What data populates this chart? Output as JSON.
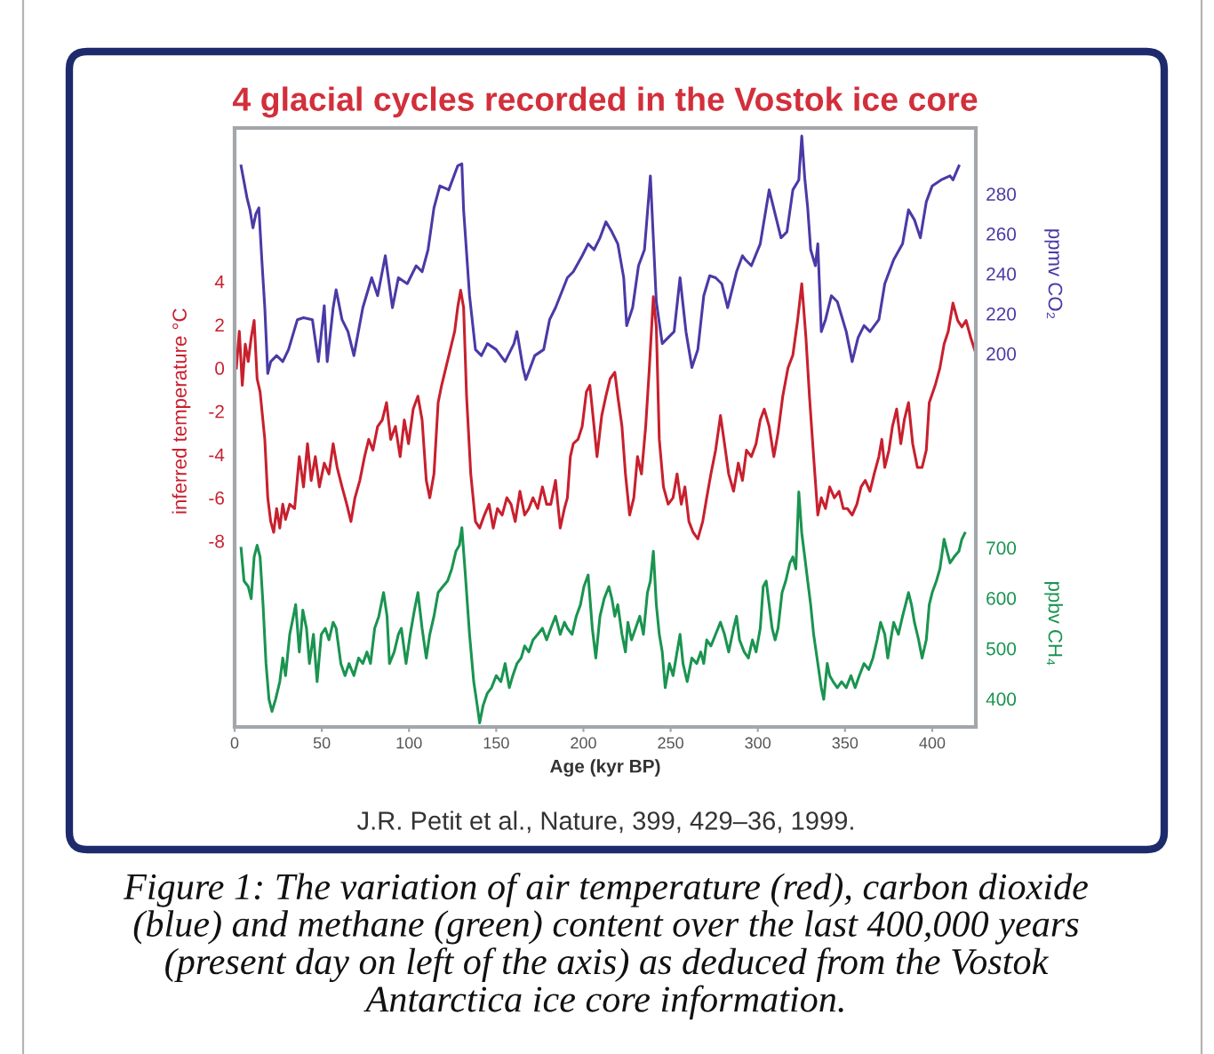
{
  "chart_data": {
    "type": "line",
    "title": "4 glacial cycles recorded in the Vostok ice core",
    "xlabel": "Age (kyr BP)",
    "ylabel": "inferred temperature °C",
    "y2label": "ppmv CO₂",
    "y3label": "ppbv CH₄",
    "xlim": [
      0,
      425
    ],
    "xticks": [
      0,
      50,
      100,
      150,
      200,
      250,
      300,
      350,
      400
    ],
    "ylim": [
      -16.6,
      11.1
    ],
    "yticks": [
      -8,
      -6,
      -4,
      -2,
      0,
      2,
      4
    ],
    "y2lim": [
      13,
      313
    ],
    "y2ticks": [
      200,
      220,
      240,
      260,
      280
    ],
    "y3lim": [
      344,
      1534
    ],
    "y3ticks": [
      400,
      500,
      600,
      700
    ],
    "series": [
      {
        "color": "#c8202e",
        "x": [
          1.0,
          2.7,
          4.4,
          6.1,
          7.8,
          9.5,
          11.2,
          12.9,
          14.6,
          17.3,
          19.0,
          20.7,
          22.4,
          24.1,
          25.9,
          27.6,
          29.2,
          31.6,
          34.4,
          37.1,
          39.5,
          41.8,
          43.9,
          46.3,
          48.6,
          51.4,
          54.1,
          56.5,
          58.8,
          61.6,
          64.3,
          66.7,
          69.0,
          71.8,
          74.5,
          76.9,
          79.3,
          82.0,
          84.7,
          87.1,
          89.5,
          92.2,
          94.9,
          97.3,
          99.7,
          102.4,
          105.1,
          107.5,
          109.9,
          111.9,
          114.3,
          116.7,
          118.7,
          121.1,
          123.5,
          126.2,
          127.9,
          129.6,
          131.3,
          133.0,
          135.4,
          138.1,
          140.5,
          143.2,
          145.9,
          148.3,
          150.7,
          153.4,
          156.1,
          158.5,
          160.9,
          163.6,
          166.3,
          168.7,
          171.1,
          173.8,
          176.5,
          178.9,
          181.3,
          184.0,
          186.7,
          189.1,
          190.8,
          192.5,
          194.2,
          196.9,
          199.3,
          201.7,
          203.7,
          206.1,
          207.8,
          210.5,
          212.9,
          215.3,
          218.0,
          219.7,
          222.1,
          224.1,
          226.5,
          228.9,
          231.0,
          233.3,
          235.7,
          237.8,
          240.1,
          241.8,
          243.5,
          245.9,
          248.6,
          251.4,
          253.7,
          256.1,
          258.2,
          260.5,
          262.9,
          265.6,
          268.4,
          270.7,
          273.1,
          275.8,
          278.6,
          280.9,
          283.3,
          286.1,
          288.8,
          291.2,
          293.5,
          296.3,
          299.0,
          301.4,
          303.7,
          306.5,
          309.2,
          311.6,
          314.3,
          317.3,
          320.1,
          322.8,
          325.2,
          327.6,
          329.6,
          332.0,
          334.4,
          336.4,
          338.8,
          341.2,
          343.9,
          346.6,
          349.0,
          351.4,
          354.1,
          356.8,
          359.2,
          361.6,
          364.3,
          366.7,
          369.4,
          371.1,
          372.8,
          375.2,
          377.2,
          379.6,
          382.0,
          384.0,
          386.4,
          388.8,
          391.5,
          394.2,
          396.6,
          398.3,
          401.7,
          404.4,
          406.8,
          409.2,
          411.9,
          414.6,
          417.0,
          419.4,
          422.1,
          424.5
        ],
        "values": [
          0.0,
          1.7,
          -0.8,
          1.1,
          0.3,
          1.4,
          2.2,
          -0.5,
          -1.1,
          -3.3,
          -6.0,
          -7.1,
          -7.6,
          -6.5,
          -7.4,
          -6.3,
          -7.0,
          -6.3,
          -6.5,
          -4.1,
          -5.5,
          -3.5,
          -5.2,
          -4.1,
          -5.5,
          -4.4,
          -4.9,
          -3.5,
          -4.6,
          -5.5,
          -6.3,
          -7.1,
          -6.0,
          -5.2,
          -4.1,
          -3.3,
          -3.8,
          -2.7,
          -2.4,
          -1.6,
          -3.3,
          -2.7,
          -4.1,
          -2.4,
          -3.5,
          -1.9,
          -1.3,
          -2.4,
          -5.2,
          -6.0,
          -4.9,
          -1.6,
          -0.8,
          0.0,
          0.8,
          1.7,
          2.8,
          3.6,
          2.8,
          -1.3,
          -4.9,
          -7.1,
          -7.4,
          -6.8,
          -6.3,
          -7.4,
          -6.5,
          -6.8,
          -6.0,
          -6.3,
          -7.1,
          -5.7,
          -6.8,
          -6.5,
          -6.0,
          -6.5,
          -5.5,
          -6.3,
          -6.3,
          -5.2,
          -7.4,
          -6.5,
          -6.0,
          -4.1,
          -3.5,
          -3.3,
          -2.7,
          -1.1,
          -0.8,
          -2.7,
          -4.1,
          -2.2,
          -1.3,
          -0.5,
          -0.2,
          -1.3,
          -2.7,
          -4.9,
          -6.8,
          -6.0,
          -4.1,
          -4.9,
          -2.7,
          0.0,
          3.3,
          1.9,
          -3.3,
          -5.5,
          -6.3,
          -6.0,
          -4.9,
          -6.3,
          -5.5,
          -7.1,
          -7.6,
          -7.9,
          -7.1,
          -6.0,
          -4.9,
          -3.8,
          -2.2,
          -3.5,
          -4.9,
          -5.7,
          -4.4,
          -5.2,
          -3.8,
          -4.1,
          -3.5,
          -2.4,
          -1.9,
          -2.7,
          -4.1,
          -3.0,
          -1.3,
          0.0,
          0.6,
          2.2,
          3.9,
          1.4,
          -1.3,
          -4.1,
          -6.8,
          -6.0,
          -6.5,
          -5.5,
          -6.0,
          -5.7,
          -6.5,
          -6.5,
          -6.8,
          -6.3,
          -5.5,
          -5.2,
          -5.7,
          -4.9,
          -4.1,
          -3.3,
          -4.6,
          -3.8,
          -2.7,
          -1.9,
          -3.5,
          -2.4,
          -1.6,
          -3.5,
          -4.6,
          -4.6,
          -3.8,
          -1.6,
          -0.8,
          0.0,
          1.1,
          1.7,
          3.0,
          2.2,
          1.9,
          2.2,
          1.4,
          0.8
        ]
      },
      {
        "color": "#4a3aa6",
        "axis": "y2",
        "x": [
          3.7,
          7.1,
          8.8,
          10.5,
          12.2,
          13.9,
          15.6,
          17.3,
          19.0,
          20.7,
          24.1,
          27.6,
          30.9,
          36.0,
          39.5,
          44.6,
          48.0,
          51.4,
          53.1,
          56.5,
          58.2,
          61.6,
          65.0,
          68.4,
          73.5,
          78.6,
          82.0,
          86.4,
          90.5,
          93.9,
          99.0,
          104.1,
          107.5,
          110.9,
          114.3,
          117.7,
          122.8,
          127.9,
          130.3,
          131.3,
          134.7,
          138.1,
          141.5,
          144.9,
          150.0,
          155.1,
          160.2,
          161.9,
          165.3,
          167.0,
          172.1,
          177.2,
          180.6,
          184.0,
          190.8,
          194.2,
          199.3,
          202.7,
          206.1,
          209.5,
          212.9,
          216.3,
          219.7,
          223.1,
          224.8,
          228.2,
          231.6,
          235.0,
          238.4,
          241.8,
          245.2,
          252.0,
          255.4,
          258.8,
          262.2,
          265.6,
          269.0,
          272.4,
          275.8,
          279.3,
          282.7,
          287.8,
          291.2,
          292.9,
          296.3,
          301.4,
          303.1,
          306.5,
          309.9,
          313.3,
          316.7,
          320.1,
          323.5,
          325.2,
          326.9,
          328.6,
          330.3,
          333.0,
          334.4,
          336.4,
          338.8,
          342.2,
          345.6,
          350.7,
          354.1,
          357.5,
          360.9,
          364.3,
          369.4,
          372.8,
          377.9,
          383.0,
          386.4,
          389.8,
          393.2,
          396.6,
          400.0,
          405.1,
          410.2,
          411.9,
          415.3
        ],
        "values": [
          294,
          278,
          272,
          263,
          270,
          273,
          247,
          223,
          190,
          196,
          199,
          196,
          202,
          217,
          218,
          217,
          196,
          224,
          196,
          223,
          232,
          217,
          211,
          199,
          223,
          238,
          229,
          249,
          223,
          238,
          235,
          244,
          241,
          252,
          273,
          284,
          282,
          294,
          295,
          272,
          229,
          202,
          199,
          205,
          202,
          196,
          205,
          211,
          193,
          187,
          199,
          202,
          217,
          223,
          238,
          241,
          249,
          255,
          252,
          258,
          266,
          261,
          255,
          238,
          214,
          223,
          244,
          252,
          289,
          226,
          205,
          211,
          238,
          211,
          193,
          202,
          229,
          239,
          238,
          235,
          223,
          241,
          249,
          247,
          244,
          255,
          264,
          282,
          270,
          258,
          261,
          282,
          287,
          309,
          288,
          273,
          252,
          244,
          255,
          211,
          217,
          229,
          226,
          211,
          196,
          208,
          214,
          211,
          217,
          235,
          247,
          255,
          272,
          267,
          258,
          276,
          284,
          287,
          289,
          287,
          294
        ]
      },
      {
        "color": "#1a9450",
        "axis": "y3",
        "x": [
          3.7,
          5.4,
          7.8,
          9.5,
          11.2,
          12.9,
          14.6,
          16.3,
          18.0,
          19.7,
          21.4,
          23.5,
          25.9,
          27.6,
          29.2,
          31.6,
          33.7,
          35.0,
          37.1,
          39.1,
          41.2,
          42.9,
          45.2,
          47.3,
          49.7,
          52.0,
          54.1,
          56.5,
          58.2,
          60.9,
          63.3,
          65.6,
          68.4,
          71.1,
          73.5,
          75.9,
          77.9,
          80.3,
          82.7,
          85.4,
          87.4,
          88.8,
          91.5,
          93.9,
          95.6,
          98.3,
          100.7,
          103.1,
          105.1,
          107.5,
          109.9,
          111.9,
          114.3,
          116.7,
          119.4,
          122.1,
          124.5,
          126.9,
          128.9,
          130.3,
          132.3,
          134.7,
          137.1,
          139.1,
          140.5,
          142.5,
          144.9,
          147.3,
          150.0,
          152.7,
          155.1,
          157.5,
          159.5,
          161.9,
          164.3,
          166.3,
          168.7,
          171.1,
          173.8,
          176.5,
          178.9,
          181.3,
          184.0,
          186.7,
          189.1,
          190.8,
          193.5,
          195.9,
          198.3,
          200.3,
          202.7,
          205.1,
          207.1,
          209.5,
          211.9,
          214.6,
          216.3,
          218.0,
          219.7,
          222.1,
          224.1,
          225.5,
          227.6,
          229.9,
          232.3,
          234.4,
          236.7,
          238.4,
          240.1,
          241.8,
          243.5,
          245.2,
          246.9,
          249.3,
          251.4,
          253.7,
          255.4,
          257.1,
          259.5,
          262.2,
          265.0,
          267.3,
          269.0,
          270.7,
          273.1,
          275.8,
          278.6,
          280.9,
          283.3,
          286.1,
          287.8,
          289.5,
          292.2,
          294.6,
          296.9,
          299.0,
          301.4,
          303.1,
          304.8,
          306.5,
          308.2,
          309.9,
          311.6,
          313.9,
          316.0,
          318.4,
          320.1,
          321.8,
          323.5,
          325.2,
          326.9,
          328.6,
          330.3,
          332.0,
          334.4,
          336.4,
          337.8,
          339.8,
          341.2,
          343.2,
          345.6,
          348.0,
          350.7,
          353.4,
          355.8,
          358.2,
          360.9,
          363.6,
          366.0,
          368.4,
          370.4,
          372.8,
          374.5,
          376.2,
          377.9,
          380.6,
          383.0,
          384.7,
          386.4,
          388.1,
          389.8,
          392.2,
          394.2,
          396.6,
          398.3,
          400.0,
          402.4,
          404.4,
          406.8,
          408.5,
          410.2,
          412.6,
          415.3,
          417.0,
          418.7
        ],
        "values": [
          699,
          634,
          623,
          599,
          682,
          705,
          682,
          587,
          470,
          399,
          375,
          399,
          434,
          481,
          446,
          528,
          564,
          587,
          493,
          576,
          540,
          470,
          528,
          434,
          528,
          540,
          517,
          552,
          540,
          470,
          446,
          470,
          446,
          481,
          470,
          493,
          470,
          540,
          564,
          611,
          564,
          470,
          493,
          528,
          540,
          470,
          528,
          576,
          611,
          540,
          481,
          528,
          564,
          611,
          623,
          634,
          658,
          693,
          705,
          740,
          646,
          528,
          434,
          387,
          352,
          387,
          411,
          422,
          446,
          434,
          470,
          422,
          446,
          470,
          481,
          505,
          493,
          517,
          528,
          540,
          517,
          540,
          564,
          528,
          552,
          540,
          528,
          564,
          587,
          623,
          646,
          540,
          481,
          564,
          599,
          623,
          599,
          564,
          587,
          528,
          493,
          552,
          517,
          540,
          564,
          528,
          611,
          634,
          693,
          587,
          528,
          493,
          422,
          470,
          446,
          493,
          528,
          470,
          434,
          481,
          470,
          493,
          470,
          517,
          505,
          528,
          552,
          528,
          493,
          540,
          564,
          517,
          493,
          481,
          517,
          493,
          540,
          623,
          634,
          587,
          540,
          517,
          540,
          611,
          634,
          670,
          682,
          658,
          811,
          729,
          682,
          634,
          587,
          528,
          470,
          422,
          399,
          470,
          446,
          434,
          422,
          434,
          422,
          446,
          422,
          446,
          470,
          458,
          481,
          517,
          552,
          528,
          481,
          517,
          552,
          528,
          564,
          587,
          611,
          587,
          552,
          517,
          481,
          517,
          587,
          611,
          634,
          658,
          717,
          693,
          670,
          682,
          693,
          717,
          729
        ]
      }
    ],
    "annotations": [
      "J.R. Petit et al., Nature, 399, 429–36, 1999.",
      "Figure 1: The variation of air temperature (red), carbon dioxide (blue) and methane (green) content over the last 400,000 years (present day on left of the axis) as deduced from the Vostok Antarctica ice core information."
    ]
  }
}
